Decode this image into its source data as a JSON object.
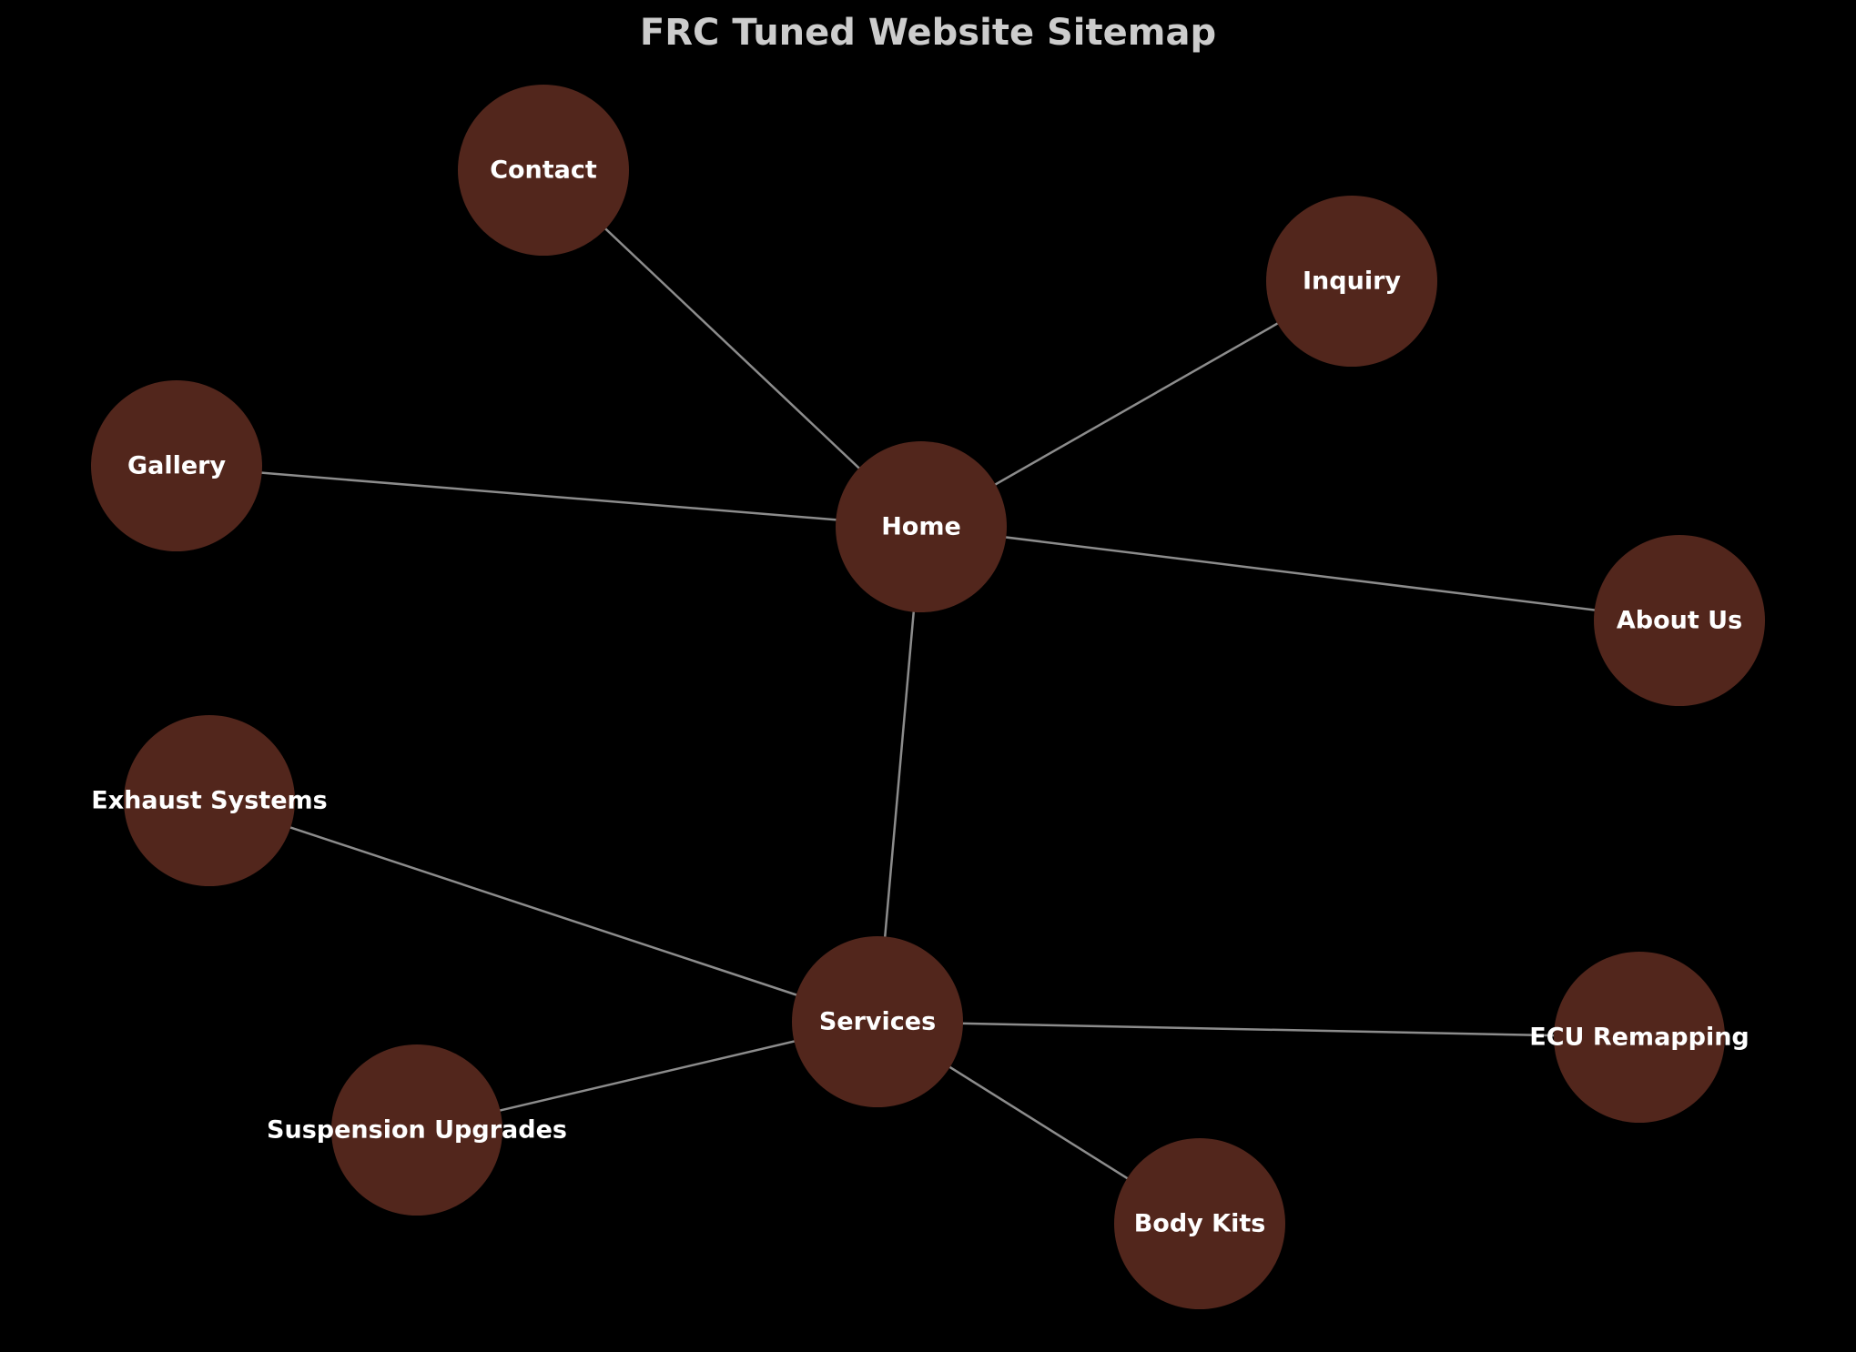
{
  "title": "FRC Tuned Website Sitemap",
  "colors": {
    "background": "#000000",
    "node_fill": "#52261c",
    "edge": "#8c8c8c",
    "label": "#ffffff",
    "title": "#cccccc"
  },
  "nodes": [
    {
      "id": "home",
      "label": "Home"
    },
    {
      "id": "contact",
      "label": "Contact"
    },
    {
      "id": "inquiry",
      "label": "Inquiry"
    },
    {
      "id": "gallery",
      "label": "Gallery"
    },
    {
      "id": "about",
      "label": "About Us"
    },
    {
      "id": "services",
      "label": "Services"
    },
    {
      "id": "exhaust",
      "label": "Exhaust Systems"
    },
    {
      "id": "suspension",
      "label": "Suspension Upgrades"
    },
    {
      "id": "ecu",
      "label": "ECU Remapping"
    },
    {
      "id": "bodykits",
      "label": "Body Kits"
    }
  ],
  "edges": [
    {
      "from": "home",
      "to": "contact"
    },
    {
      "from": "home",
      "to": "inquiry"
    },
    {
      "from": "home",
      "to": "gallery"
    },
    {
      "from": "home",
      "to": "about"
    },
    {
      "from": "home",
      "to": "services"
    },
    {
      "from": "services",
      "to": "exhaust"
    },
    {
      "from": "services",
      "to": "suspension"
    },
    {
      "from": "services",
      "to": "ecu"
    },
    {
      "from": "services",
      "to": "bodykits"
    }
  ]
}
